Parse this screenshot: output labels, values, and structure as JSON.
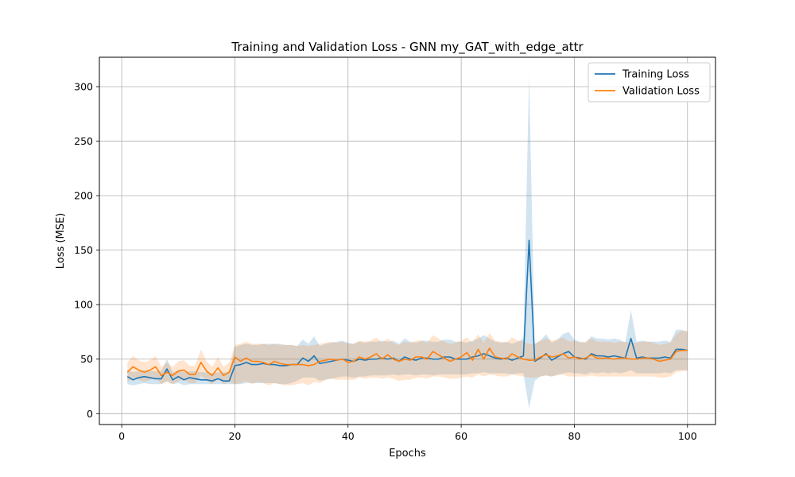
{
  "chart_data": {
    "type": "line",
    "title": "Training and Validation Loss - GNN my_GAT_with_edge_attr",
    "xlabel": "Epochs",
    "ylabel": "Loss (MSE)",
    "xlim": [
      -3.95,
      104.95
    ],
    "ylim": [
      -10,
      327
    ],
    "xticks": [
      0,
      20,
      40,
      60,
      80,
      100
    ],
    "yticks": [
      0,
      50,
      100,
      150,
      200,
      250,
      300
    ],
    "grid": true,
    "legend_position": "top-right",
    "x": [
      1,
      2,
      3,
      4,
      5,
      6,
      7,
      8,
      9,
      10,
      11,
      12,
      13,
      14,
      15,
      16,
      17,
      18,
      19,
      20,
      21,
      22,
      23,
      24,
      25,
      26,
      27,
      28,
      29,
      30,
      31,
      32,
      33,
      34,
      35,
      36,
      37,
      38,
      39,
      40,
      41,
      42,
      43,
      44,
      45,
      46,
      47,
      48,
      49,
      50,
      51,
      52,
      53,
      54,
      55,
      56,
      57,
      58,
      59,
      60,
      61,
      62,
      63,
      64,
      65,
      66,
      67,
      68,
      69,
      70,
      71,
      72,
      73,
      74,
      75,
      76,
      77,
      78,
      79,
      80,
      81,
      82,
      83,
      84,
      85,
      86,
      87,
      88,
      89,
      90,
      91,
      92,
      93,
      94,
      95,
      96,
      97,
      98,
      99,
      100
    ],
    "series": [
      {
        "name": "Training Loss",
        "color": "#1f77b4",
        "band_color": "#1f77b4",
        "values": [
          34,
          31,
          33,
          34,
          33,
          32,
          32,
          41,
          31,
          34,
          31,
          33,
          32,
          31,
          31,
          30,
          32,
          30,
          30,
          44,
          45,
          47,
          45,
          45,
          46,
          45,
          45,
          44,
          44,
          45,
          45,
          51,
          48,
          53,
          46,
          47,
          48,
          49,
          50,
          49,
          48,
          50,
          49,
          50,
          50,
          51,
          50,
          51,
          48,
          52,
          50,
          49,
          51,
          51,
          50,
          50,
          52,
          52,
          50,
          50,
          50,
          52,
          53,
          55,
          53,
          51,
          50,
          51,
          49,
          51,
          53,
          159,
          48,
          51,
          55,
          49,
          52,
          55,
          57,
          52,
          51,
          50,
          55,
          53,
          53,
          52,
          53,
          52,
          51,
          69,
          51,
          52,
          51,
          51,
          51,
          52,
          51,
          59,
          59,
          58
        ],
        "lower": [
          27,
          26,
          27,
          28,
          27,
          27,
          27,
          30,
          27,
          28,
          26,
          27,
          27,
          27,
          27,
          27,
          27,
          27,
          27,
          27,
          27,
          28,
          28,
          28,
          28,
          28,
          28,
          27,
          27,
          28,
          30,
          33,
          33,
          33,
          30,
          31,
          32,
          33,
          34,
          34,
          33,
          34,
          34,
          35,
          35,
          35,
          35,
          36,
          35,
          36,
          36,
          35,
          36,
          36,
          35,
          36,
          36,
          36,
          36,
          36,
          36,
          37,
          37,
          38,
          37,
          37,
          37,
          37,
          36,
          37,
          37,
          5,
          30,
          34,
          35,
          34,
          36,
          37,
          38,
          37,
          37,
          36,
          38,
          37,
          38,
          37,
          38,
          37,
          38,
          40,
          37,
          37,
          37,
          37,
          37,
          38,
          37,
          40,
          40,
          40
        ],
        "upper": [
          40,
          38,
          39,
          40,
          39,
          39,
          39,
          50,
          38,
          40,
          38,
          39,
          39,
          38,
          38,
          37,
          38,
          38,
          38,
          61,
          63,
          64,
          63,
          63,
          64,
          64,
          64,
          64,
          63,
          63,
          62,
          68,
          64,
          71,
          62,
          64,
          65,
          66,
          67,
          65,
          64,
          66,
          65,
          66,
          66,
          67,
          66,
          67,
          64,
          69,
          66,
          65,
          67,
          67,
          66,
          66,
          68,
          68,
          66,
          66,
          65,
          67,
          69,
          72,
          69,
          66,
          65,
          66,
          64,
          66,
          69,
          311,
          64,
          67,
          73,
          65,
          68,
          73,
          75,
          68,
          66,
          65,
          71,
          69,
          69,
          68,
          69,
          68,
          65,
          95,
          66,
          67,
          66,
          66,
          66,
          67,
          66,
          77,
          77,
          75
        ]
      },
      {
        "name": "Validation Loss",
        "color": "#ff7f0e",
        "band_color": "#ff7f0e",
        "values": [
          38,
          43,
          40,
          38,
          40,
          43,
          35,
          38,
          35,
          39,
          40,
          36,
          36,
          47,
          39,
          35,
          42,
          35,
          38,
          52,
          48,
          51,
          48,
          48,
          47,
          45,
          48,
          46,
          45,
          45,
          45,
          45,
          44,
          45,
          48,
          49,
          50,
          49,
          50,
          47,
          48,
          52,
          50,
          52,
          55,
          50,
          54,
          50,
          48,
          50,
          49,
          52,
          52,
          50,
          57,
          54,
          51,
          48,
          50,
          52,
          56,
          49,
          59,
          50,
          60,
          52,
          51,
          50,
          55,
          52,
          50,
          49,
          49,
          52,
          54,
          52,
          53,
          55,
          51,
          52,
          50,
          51,
          54,
          51,
          51,
          51,
          50,
          51,
          51,
          50,
          50,
          51,
          51,
          50,
          48,
          49,
          50,
          57,
          58,
          58
        ],
        "lower": [
          29,
          33,
          31,
          29,
          31,
          33,
          27,
          29,
          27,
          30,
          31,
          28,
          28,
          35,
          30,
          27,
          32,
          27,
          29,
          27,
          28,
          30,
          27,
          29,
          28,
          26,
          28,
          27,
          26,
          26,
          27,
          28,
          26,
          29,
          28,
          31,
          32,
          31,
          31,
          31,
          31,
          33,
          32,
          33,
          33,
          32,
          33,
          32,
          30,
          31,
          31,
          33,
          33,
          32,
          34,
          34,
          33,
          32,
          32,
          33,
          34,
          33,
          36,
          34,
          36,
          35,
          34,
          34,
          36,
          35,
          34,
          33,
          33,
          34,
          35,
          34,
          35,
          36,
          34,
          34,
          34,
          34,
          35,
          34,
          34,
          34,
          34,
          34,
          34,
          34,
          34,
          34,
          34,
          34,
          33,
          33,
          34,
          38,
          39,
          39
        ],
        "upper": [
          47,
          53,
          49,
          47,
          49,
          53,
          43,
          47,
          43,
          48,
          49,
          44,
          44,
          59,
          48,
          43,
          52,
          43,
          47,
          63,
          64,
          66,
          64,
          64,
          64,
          63,
          64,
          63,
          63,
          63,
          62,
          63,
          62,
          63,
          64,
          65,
          66,
          65,
          66,
          64,
          64,
          67,
          66,
          67,
          70,
          65,
          69,
          65,
          63,
          66,
          65,
          67,
          67,
          65,
          72,
          69,
          66,
          64,
          65,
          67,
          70,
          65,
          73,
          65,
          74,
          67,
          66,
          65,
          70,
          67,
          66,
          64,
          64,
          67,
          69,
          67,
          68,
          70,
          66,
          67,
          65,
          66,
          69,
          66,
          66,
          66,
          65,
          66,
          66,
          65,
          65,
          66,
          66,
          65,
          63,
          64,
          65,
          73,
          76,
          76
        ]
      }
    ]
  }
}
